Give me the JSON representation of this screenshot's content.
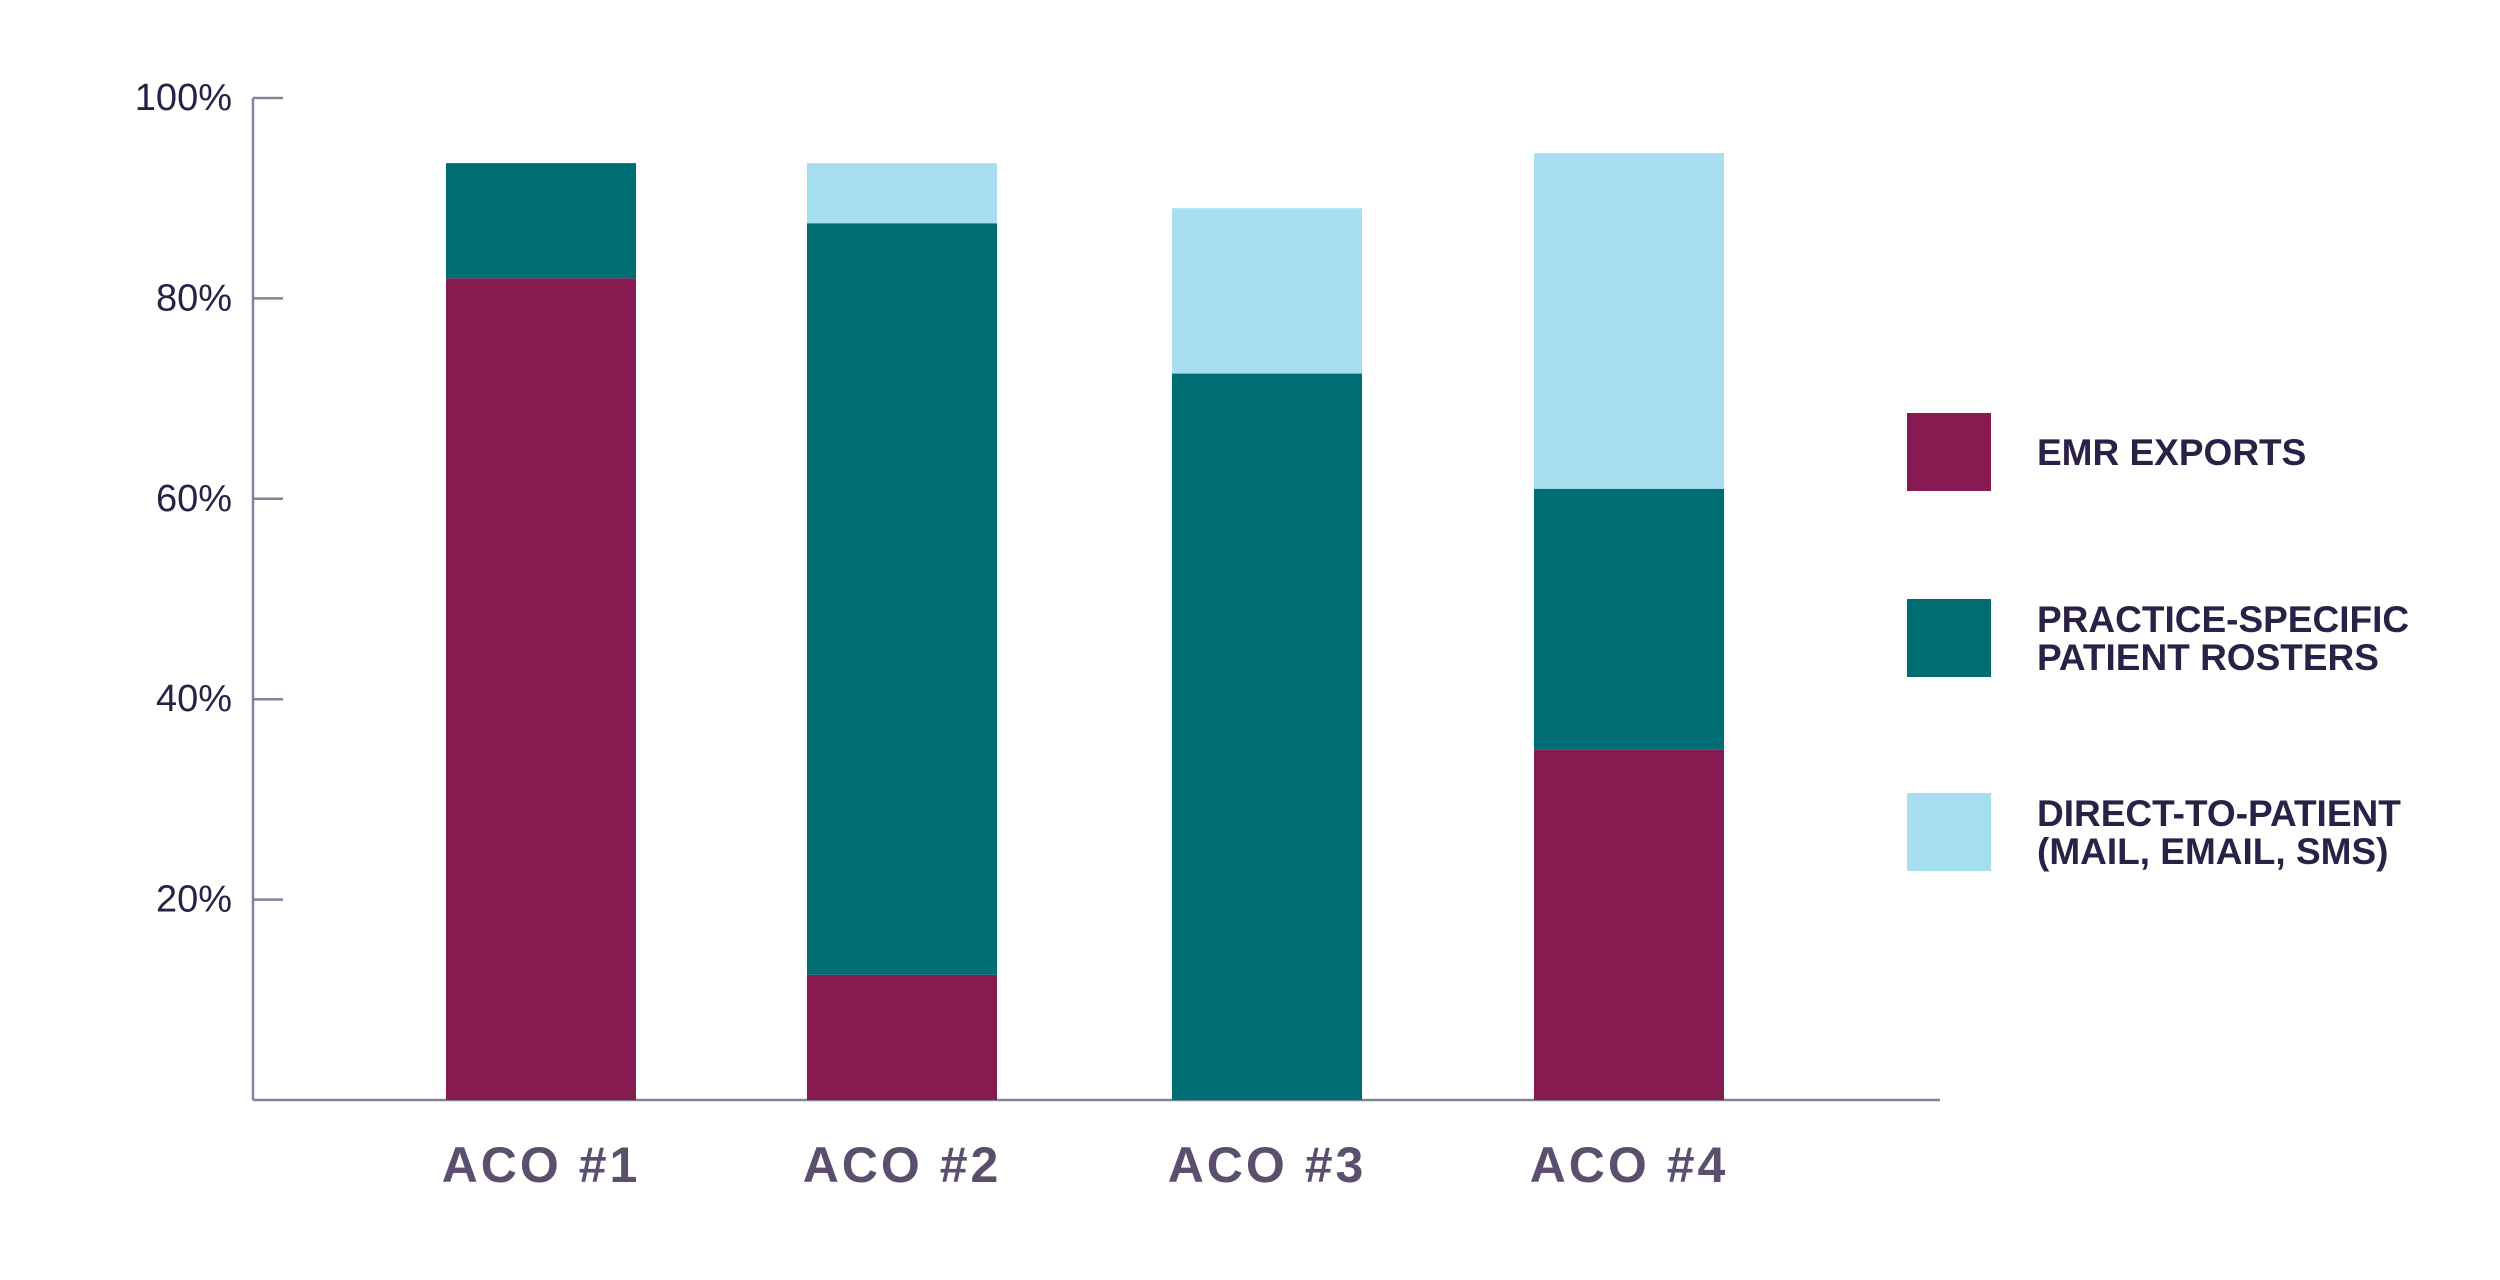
{
  "chart_data": {
    "type": "bar",
    "stacked": true,
    "categories": [
      "ACO #1",
      "ACO #2",
      "ACO #3",
      "ACO #4"
    ],
    "series": [
      {
        "name": "EMR EXPORTS",
        "values": [
          82,
          12.5,
          0,
          35
        ],
        "color": "#871a51"
      },
      {
        "name": "PRACTICE-SPECIFIC PATIENT ROSTERS",
        "values": [
          11.5,
          75,
          72.5,
          26
        ],
        "color": "#006d75"
      },
      {
        "name": "DIRECT-TO-PATIENT (MAIL, EMAIL, SMS)",
        "values": [
          0,
          6,
          16.5,
          33.5
        ],
        "color": "#a8dff0"
      }
    ],
    "legend": [
      {
        "lines": [
          "EMR EXPORTS"
        ],
        "color": "#871a51"
      },
      {
        "lines": [
          "PRACTICE-SPECIFIC",
          "PATIENT ROSTERS"
        ],
        "color": "#006d75"
      },
      {
        "lines": [
          "DIRECT-TO-PATIENT",
          "(MAIL, EMAIL, SMS)"
        ],
        "color": "#a8dff0"
      }
    ],
    "y_ticks": [
      {
        "value": 20,
        "label": "20%"
      },
      {
        "value": 40,
        "label": "40%"
      },
      {
        "value": 60,
        "label": "60%"
      },
      {
        "value": 80,
        "label": "80%"
      },
      {
        "value": 100,
        "label": "100%"
      }
    ],
    "ylim": [
      0,
      100
    ],
    "title": "",
    "xlabel": "",
    "ylabel": "",
    "grid": false,
    "legend_position": "right",
    "axis_color": "#7d8596"
  }
}
